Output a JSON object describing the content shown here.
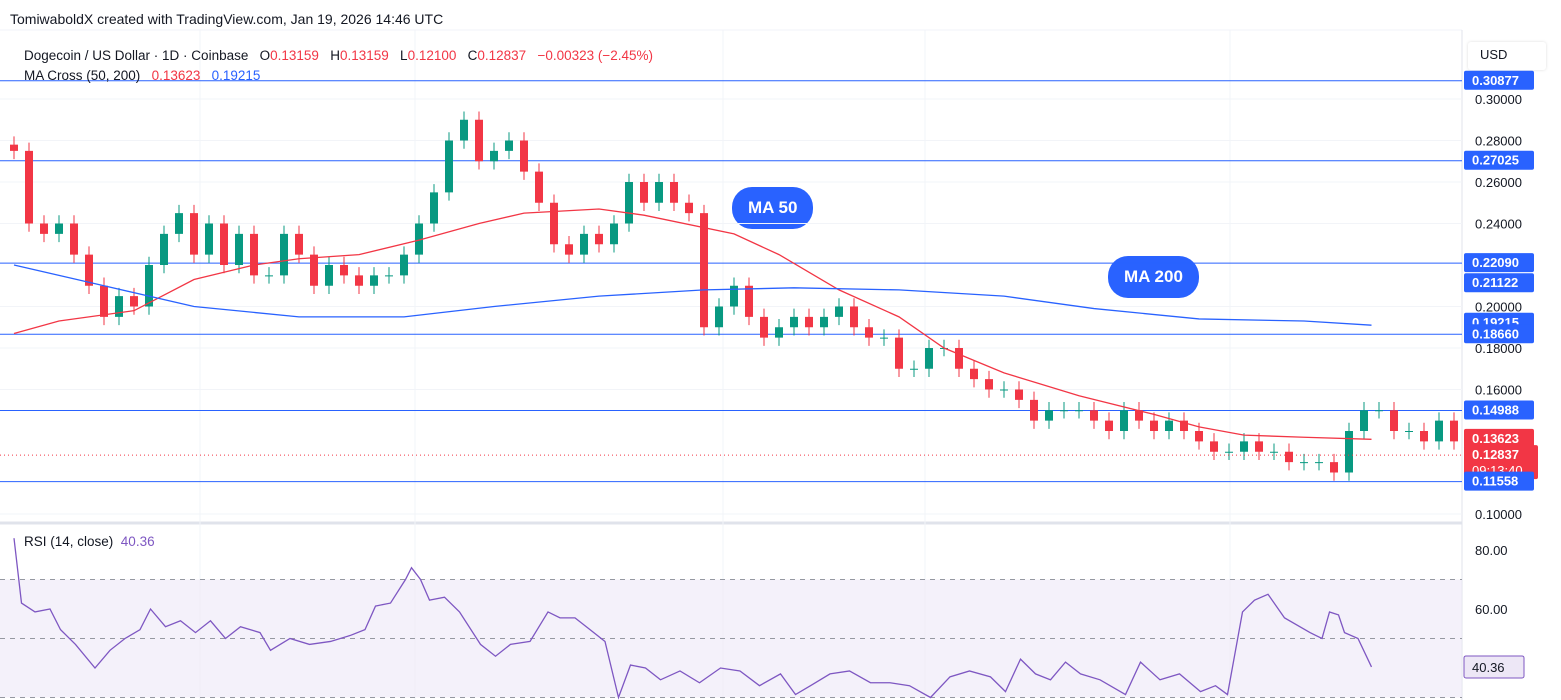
{
  "credit": "TomiwaboldX created with TradingView.com, Jan 19, 2026 14:46 UTC",
  "legend": {
    "symbol": "Dogecoin / US Dollar · 1D · Coinbase",
    "o_label": "O",
    "o": "0.13159",
    "h_label": "H",
    "h": "0.13159",
    "l_label": "L",
    "l": "0.12100",
    "c_label": "C",
    "c": "0.12837",
    "change": "−0.00323 (−2.45%)",
    "ma_label": "MA Cross (50, 200)",
    "ma50": "0.13623",
    "ma200": "0.19215"
  },
  "currency": "USD",
  "annotations": {
    "ma50": "MA 50",
    "ma200": "MA 200"
  },
  "rsi_legend": {
    "label": "RSI (14, close)",
    "value": "40.36"
  },
  "colors": {
    "up": "#089981",
    "down": "#f23645",
    "ma50": "#f23645",
    "ma200": "#2962ff",
    "hline": "#2962ff",
    "rsi": "#7e57c2",
    "rsi_band": "#ede7f6"
  },
  "chart_data": [
    {
      "type": "candlestick",
      "ylim": [
        0.1,
        0.31
      ],
      "yticks": [
        "0.30000",
        "0.28000",
        "0.26000",
        "0.24000",
        "0.20000",
        "0.18000",
        "0.16000",
        "0.10000"
      ],
      "closes": [
        0.275,
        0.24,
        0.235,
        0.24,
        0.225,
        0.21,
        0.195,
        0.205,
        0.2,
        0.22,
        0.235,
        0.245,
        0.225,
        0.24,
        0.22,
        0.235,
        0.215,
        0.215,
        0.235,
        0.225,
        0.21,
        0.22,
        0.215,
        0.21,
        0.215,
        0.215,
        0.225,
        0.24,
        0.255,
        0.28,
        0.29,
        0.27,
        0.275,
        0.28,
        0.265,
        0.25,
        0.23,
        0.225,
        0.235,
        0.23,
        0.24,
        0.26,
        0.25,
        0.26,
        0.25,
        0.245,
        0.19,
        0.2,
        0.21,
        0.195,
        0.185,
        0.19,
        0.195,
        0.19,
        0.195,
        0.2,
        0.19,
        0.185,
        0.185,
        0.17,
        0.17,
        0.18,
        0.18,
        0.17,
        0.165,
        0.16,
        0.16,
        0.155,
        0.145,
        0.15,
        0.15,
        0.15,
        0.145,
        0.14,
        0.15,
        0.145,
        0.14,
        0.145,
        0.14,
        0.135,
        0.13,
        0.13,
        0.135,
        0.13,
        0.13,
        0.125,
        0.125,
        0.125,
        0.12,
        0.14,
        0.15,
        0.15,
        0.14,
        0.14,
        0.135,
        0.145,
        0.135,
        0.135,
        0.12837
      ],
      "ma50": [
        [
          0,
          0.187
        ],
        [
          3,
          0.193
        ],
        [
          8,
          0.198
        ],
        [
          12,
          0.213
        ],
        [
          16,
          0.22
        ],
        [
          19,
          0.223
        ],
        [
          23,
          0.225
        ],
        [
          27,
          0.232
        ],
        [
          31,
          0.24
        ],
        [
          34,
          0.245
        ],
        [
          39,
          0.247
        ],
        [
          42,
          0.244
        ],
        [
          48,
          0.235
        ],
        [
          51,
          0.225
        ],
        [
          55,
          0.208
        ],
        [
          59,
          0.195
        ],
        [
          62,
          0.18
        ],
        [
          66,
          0.168
        ],
        [
          71,
          0.157
        ],
        [
          76,
          0.148
        ],
        [
          79,
          0.142
        ],
        [
          82,
          0.138
        ],
        [
          86,
          0.137
        ],
        [
          90.5,
          0.136
        ]
      ],
      "ma200": [
        [
          0,
          0.22
        ],
        [
          6,
          0.21
        ],
        [
          12,
          0.2
        ],
        [
          19,
          0.195
        ],
        [
          26,
          0.195
        ],
        [
          32,
          0.2
        ],
        [
          39,
          0.205
        ],
        [
          46,
          0.208
        ],
        [
          52,
          0.209
        ],
        [
          59,
          0.208
        ],
        [
          66,
          0.205
        ],
        [
          72,
          0.199
        ],
        [
          79,
          0.194
        ],
        [
          86,
          0.193
        ],
        [
          90.5,
          0.191
        ]
      ],
      "hlines": [
        "0.30877",
        "0.27025",
        "0.22090",
        "0.18660",
        "0.14988",
        "0.11558"
      ],
      "price_tags": [
        {
          "value": "0.30877",
          "color": "#2962ff"
        },
        {
          "value": "0.27025",
          "color": "#2962ff"
        },
        {
          "value": "0.22090",
          "color": "#2962ff"
        },
        {
          "value": "0.21122",
          "color": "#2962ff"
        },
        {
          "value": "0.19215",
          "color": "#2962ff"
        },
        {
          "value": "0.18660",
          "color": "#2962ff"
        },
        {
          "value": "0.14988",
          "color": "#2962ff"
        },
        {
          "value": "0.13623",
          "color": "#f23645"
        },
        {
          "value": "0.12837",
          "color": "#f23645",
          "countdown": "09:13:40"
        },
        {
          "value": "0.11558",
          "color": "#2962ff"
        }
      ]
    },
    {
      "type": "line",
      "name": "RSI (14, close)",
      "ylim": [
        28,
        86
      ],
      "yticks": [
        "80.00",
        "60.00"
      ],
      "bands": [
        30,
        50,
        70
      ],
      "points": [
        [
          0,
          84
        ],
        [
          0.5,
          62
        ],
        [
          1.4,
          59
        ],
        [
          2.4,
          60
        ],
        [
          3.1,
          53
        ],
        [
          4.1,
          48
        ],
        [
          5.4,
          40
        ],
        [
          6.4,
          46
        ],
        [
          7.4,
          50
        ],
        [
          8.4,
          53
        ],
        [
          9.1,
          60
        ],
        [
          10.1,
          54
        ],
        [
          11.1,
          56
        ],
        [
          12.1,
          52
        ],
        [
          13.1,
          56
        ],
        [
          14.1,
          50
        ],
        [
          15.1,
          54
        ],
        [
          16.4,
          52
        ],
        [
          17.1,
          46
        ],
        [
          18.4,
          50
        ],
        [
          19.7,
          48
        ],
        [
          21.1,
          49
        ],
        [
          22.4,
          51
        ],
        [
          23.4,
          53
        ],
        [
          24.1,
          61
        ],
        [
          25.1,
          62
        ],
        [
          26.1,
          70
        ],
        [
          26.5,
          74
        ],
        [
          27.1,
          70
        ],
        [
          27.7,
          63
        ],
        [
          28.7,
          64
        ],
        [
          29.7,
          59
        ],
        [
          31.1,
          48
        ],
        [
          32.1,
          44
        ],
        [
          33.1,
          48
        ],
        [
          34.4,
          49
        ],
        [
          35.6,
          59
        ],
        [
          36.4,
          57
        ],
        [
          37.4,
          57
        ],
        [
          38.4,
          53
        ],
        [
          39.4,
          49
        ],
        [
          40.3,
          30
        ],
        [
          41.1,
          41
        ],
        [
          42.1,
          40
        ],
        [
          43.1,
          36
        ],
        [
          44.4,
          39
        ],
        [
          45.7,
          35
        ],
        [
          47.1,
          40
        ],
        [
          48.4,
          39
        ],
        [
          49.7,
          34
        ],
        [
          51.1,
          38
        ],
        [
          52.1,
          31
        ],
        [
          53.1,
          34
        ],
        [
          54.4,
          38
        ],
        [
          55.7,
          39
        ],
        [
          57.1,
          35
        ],
        [
          58.4,
          35
        ],
        [
          59.7,
          34
        ],
        [
          61.1,
          30
        ],
        [
          62.4,
          37
        ],
        [
          63.7,
          39
        ],
        [
          65.1,
          37
        ],
        [
          66.1,
          32
        ],
        [
          67.1,
          43
        ],
        [
          68.1,
          38
        ],
        [
          69.1,
          36
        ],
        [
          70.1,
          42
        ],
        [
          71.1,
          38
        ],
        [
          72.4,
          36
        ],
        [
          74.1,
          31
        ],
        [
          75.1,
          42
        ],
        [
          76.4,
          36
        ],
        [
          77.7,
          38
        ],
        [
          79.1,
          32
        ],
        [
          80.1,
          34
        ],
        [
          80.9,
          31
        ],
        [
          81.9,
          59
        ],
        [
          82.7,
          63
        ],
        [
          83.6,
          65
        ],
        [
          84.7,
          57
        ],
        [
          86.4,
          52
        ],
        [
          87.2,
          50
        ],
        [
          87.7,
          59
        ],
        [
          88.3,
          58
        ],
        [
          88.7,
          52
        ],
        [
          89.6,
          50
        ],
        [
          90.5,
          40.36
        ]
      ],
      "value_tag": "40.36"
    }
  ]
}
